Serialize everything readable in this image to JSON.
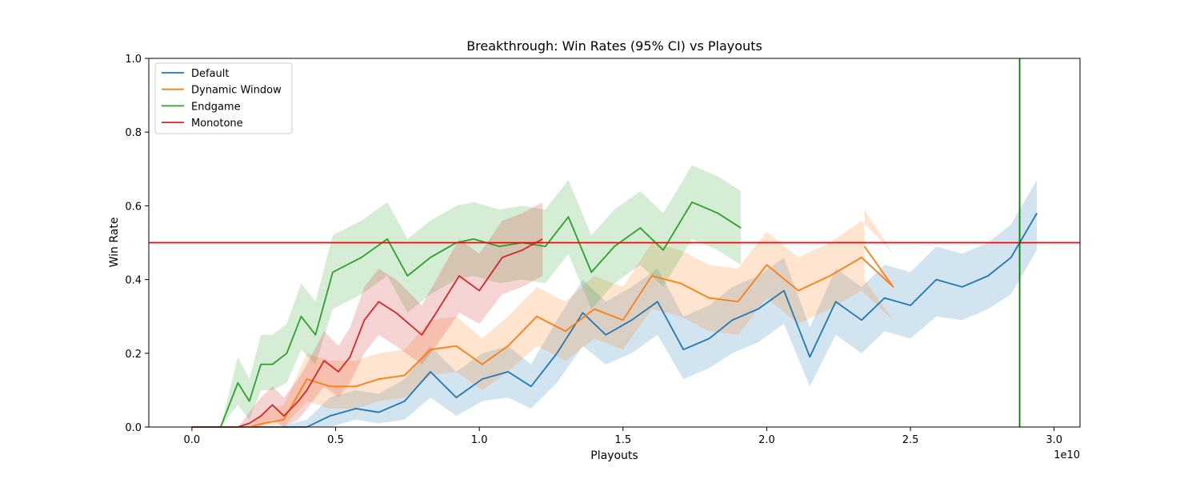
{
  "chart_data": {
    "type": "line",
    "title": "Breakthrough: Win Rates (95% CI) vs Playouts",
    "xlabel": "Playouts",
    "ylabel": "Win Rate",
    "x_offset_label": "1e10",
    "xlim": [
      -0.15,
      3.09
    ],
    "ylim": [
      0.0,
      1.0
    ],
    "x_ticks": [
      0.0,
      0.5,
      1.0,
      1.5,
      2.0,
      2.5,
      3.0
    ],
    "x_tick_labels": [
      "0.0",
      "0.5",
      "1.0",
      "1.5",
      "2.0",
      "2.5",
      "3.0"
    ],
    "y_ticks": [
      0.0,
      0.2,
      0.4,
      0.6,
      0.8,
      1.0
    ],
    "y_tick_labels": [
      "0.0",
      "0.2",
      "0.4",
      "0.6",
      "0.8",
      "1.0"
    ],
    "grid": false,
    "legend_position": "top-left",
    "reference_lines": [
      {
        "orientation": "horizontal",
        "value": 0.5,
        "color": "#ff0000"
      },
      {
        "orientation": "vertical",
        "value": 2.88,
        "color": "#008000"
      }
    ],
    "series": [
      {
        "name": "Default",
        "color": "#1f77b4",
        "x": [
          0.0,
          0.1,
          0.2,
          0.3,
          0.4,
          0.48,
          0.57,
          0.65,
          0.74,
          0.83,
          0.92,
          1.01,
          1.1,
          1.18,
          1.27,
          1.36,
          1.44,
          1.53,
          1.62,
          1.71,
          1.8,
          1.88,
          1.97,
          2.06,
          2.15,
          2.24,
          2.33,
          2.41,
          2.5,
          2.59,
          2.68,
          2.77,
          2.85,
          2.94
        ],
        "y": [
          0.0,
          0.0,
          0.0,
          0.0,
          0.0,
          0.03,
          0.05,
          0.04,
          0.07,
          0.15,
          0.08,
          0.13,
          0.15,
          0.11,
          0.2,
          0.31,
          0.25,
          0.29,
          0.34,
          0.21,
          0.24,
          0.29,
          0.32,
          0.37,
          0.19,
          0.34,
          0.29,
          0.35,
          0.33,
          0.4,
          0.38,
          0.41,
          0.46,
          0.58
        ],
        "lower": [
          0.0,
          0.0,
          0.0,
          0.0,
          0.0,
          0.0,
          0.02,
          0.01,
          0.02,
          0.08,
          0.03,
          0.07,
          0.08,
          0.05,
          0.12,
          0.22,
          0.17,
          0.2,
          0.25,
          0.13,
          0.16,
          0.2,
          0.23,
          0.28,
          0.11,
          0.25,
          0.2,
          0.26,
          0.24,
          0.3,
          0.29,
          0.32,
          0.36,
          0.48
        ],
        "upper": [
          0.0,
          0.0,
          0.0,
          0.0,
          0.02,
          0.08,
          0.1,
          0.09,
          0.13,
          0.22,
          0.15,
          0.2,
          0.22,
          0.17,
          0.29,
          0.4,
          0.34,
          0.38,
          0.43,
          0.3,
          0.33,
          0.38,
          0.41,
          0.46,
          0.27,
          0.43,
          0.38,
          0.44,
          0.42,
          0.49,
          0.47,
          0.5,
          0.55,
          0.67
        ]
      },
      {
        "name": "Dynamic Window",
        "color": "#ff7f0e",
        "x": [
          0.0,
          0.1,
          0.2,
          0.25,
          0.32,
          0.4,
          0.48,
          0.57,
          0.65,
          0.74,
          0.83,
          0.92,
          1.01,
          1.1,
          1.2,
          1.3,
          1.4,
          1.5,
          1.6,
          1.7,
          1.8,
          1.9,
          2.0,
          2.11,
          2.22,
          2.33,
          2.44,
          2.34
        ],
        "y": [
          0.0,
          0.0,
          0.0,
          0.01,
          0.02,
          0.13,
          0.11,
          0.11,
          0.13,
          0.14,
          0.21,
          0.22,
          0.17,
          0.22,
          0.3,
          0.26,
          0.32,
          0.29,
          0.41,
          0.39,
          0.35,
          0.34,
          0.44,
          0.37,
          0.41,
          0.46,
          0.38,
          0.49
        ],
        "lower": [
          0.0,
          0.0,
          0.0,
          0.0,
          0.0,
          0.07,
          0.05,
          0.05,
          0.07,
          0.08,
          0.14,
          0.15,
          0.1,
          0.15,
          0.22,
          0.18,
          0.24,
          0.21,
          0.32,
          0.3,
          0.26,
          0.25,
          0.35,
          0.28,
          0.32,
          0.37,
          0.29,
          0.4
        ],
        "upper": [
          0.0,
          0.0,
          0.0,
          0.04,
          0.06,
          0.2,
          0.18,
          0.18,
          0.2,
          0.21,
          0.29,
          0.3,
          0.24,
          0.3,
          0.38,
          0.34,
          0.41,
          0.38,
          0.5,
          0.48,
          0.44,
          0.43,
          0.53,
          0.46,
          0.5,
          0.56,
          0.47,
          0.59
        ]
      },
      {
        "name": "Endgame",
        "color": "#2ca02c",
        "x": [
          0.0,
          0.1,
          0.16,
          0.2,
          0.24,
          0.28,
          0.33,
          0.38,
          0.43,
          0.49,
          0.59,
          0.68,
          0.75,
          0.83,
          0.92,
          0.98,
          1.07,
          1.15,
          1.23,
          1.31,
          1.39,
          1.47,
          1.56,
          1.64,
          1.74,
          1.83,
          1.91
        ],
        "y": [
          0.0,
          0.0,
          0.12,
          0.07,
          0.17,
          0.17,
          0.2,
          0.3,
          0.25,
          0.42,
          0.46,
          0.51,
          0.41,
          0.46,
          0.5,
          0.51,
          0.49,
          0.5,
          0.49,
          0.57,
          0.42,
          0.49,
          0.54,
          0.48,
          0.61,
          0.58,
          0.54
        ],
        "lower": [
          0.0,
          0.0,
          0.06,
          0.02,
          0.1,
          0.1,
          0.12,
          0.21,
          0.17,
          0.32,
          0.36,
          0.41,
          0.31,
          0.36,
          0.4,
          0.41,
          0.39,
          0.4,
          0.39,
          0.47,
          0.32,
          0.39,
          0.44,
          0.38,
          0.51,
          0.48,
          0.44
        ],
        "upper": [
          0.0,
          0.0,
          0.19,
          0.13,
          0.25,
          0.25,
          0.28,
          0.39,
          0.34,
          0.52,
          0.56,
          0.61,
          0.51,
          0.56,
          0.6,
          0.61,
          0.59,
          0.6,
          0.59,
          0.67,
          0.52,
          0.59,
          0.64,
          0.58,
          0.71,
          0.68,
          0.64
        ]
      },
      {
        "name": "Monotone",
        "color": "#d62728",
        "x": [
          0.0,
          0.1,
          0.16,
          0.2,
          0.24,
          0.28,
          0.32,
          0.37,
          0.4,
          0.46,
          0.51,
          0.55,
          0.6,
          0.65,
          0.71,
          0.8,
          0.85,
          0.93,
          1.0,
          1.08,
          1.15,
          1.22
        ],
        "y": [
          0.0,
          0.0,
          0.0,
          0.01,
          0.03,
          0.06,
          0.03,
          0.07,
          0.1,
          0.18,
          0.15,
          0.19,
          0.29,
          0.34,
          0.31,
          0.25,
          0.31,
          0.41,
          0.37,
          0.46,
          0.48,
          0.51
        ],
        "lower": [
          0.0,
          0.0,
          0.0,
          0.0,
          0.0,
          0.02,
          0.0,
          0.02,
          0.05,
          0.11,
          0.08,
          0.12,
          0.2,
          0.25,
          0.22,
          0.17,
          0.22,
          0.31,
          0.28,
          0.36,
          0.38,
          0.41
        ],
        "upper": [
          0.0,
          0.0,
          0.0,
          0.04,
          0.08,
          0.11,
          0.08,
          0.13,
          0.17,
          0.26,
          0.22,
          0.27,
          0.38,
          0.43,
          0.4,
          0.33,
          0.4,
          0.51,
          0.47,
          0.56,
          0.58,
          0.61
        ]
      }
    ]
  }
}
